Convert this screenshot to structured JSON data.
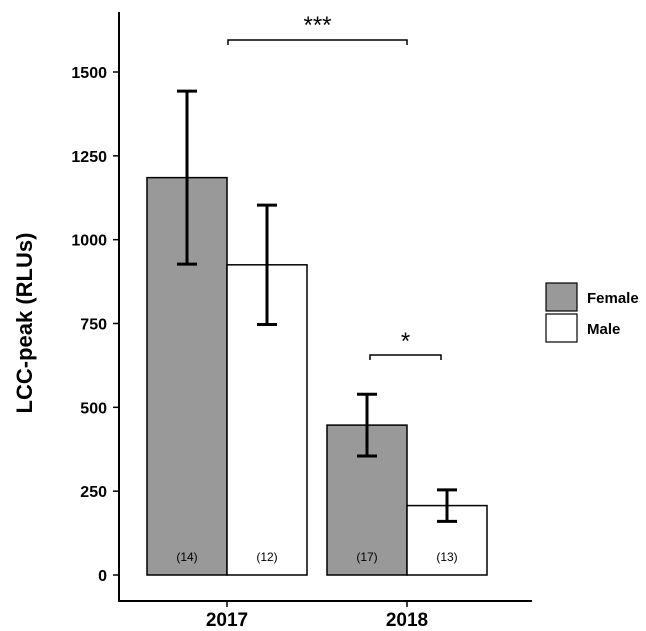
{
  "chart_data": {
    "type": "bar",
    "categories": [
      "2017",
      "2018"
    ],
    "series": [
      {
        "name": "Female",
        "color": "#999999",
        "values": [
          1185,
          447
        ],
        "errors": [
          258,
          92
        ],
        "n_labels": [
          "(14)",
          "(17)"
        ]
      },
      {
        "name": "Male",
        "color": "#ffffff",
        "values": [
          925,
          207
        ],
        "errors": [
          178,
          47
        ],
        "n_labels": [
          "(12)",
          "(13)"
        ]
      }
    ],
    "title": "",
    "xlabel": "",
    "ylabel": "LCC-peak (RLUs)",
    "ylim": [
      0,
      1650
    ],
    "yticks": [
      0,
      250,
      500,
      750,
      1000,
      1250,
      1500
    ],
    "ytick_labels": [
      "0",
      "250",
      "500",
      "750",
      "1000",
      "1250",
      "1500"
    ],
    "significance": [
      {
        "label": "***",
        "between": [
          "2017 Female",
          "2018 Female"
        ]
      },
      {
        "label": "*",
        "between": [
          "2018 Female",
          "2018 Male"
        ]
      }
    ],
    "legend_position": "right",
    "grid": false
  }
}
